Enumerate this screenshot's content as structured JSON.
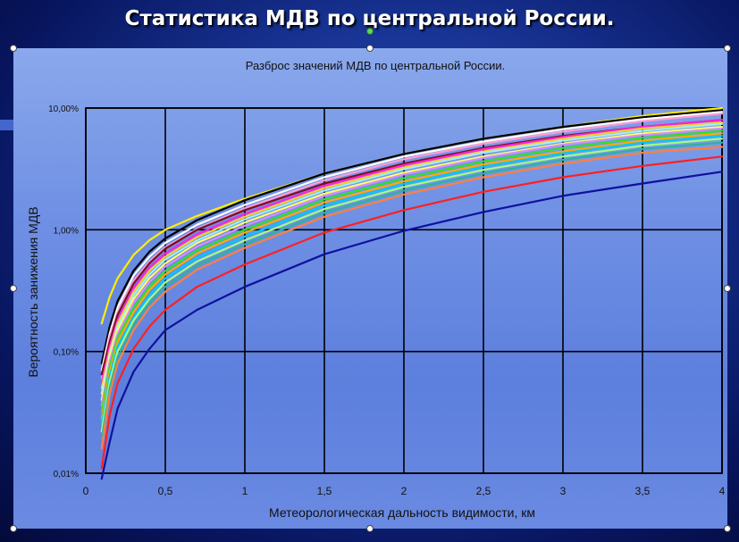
{
  "slide": {
    "title": "Статистика МДВ по центральной России."
  },
  "colors": {
    "background": "#0d2175",
    "plot_area": "#6f90e4",
    "grid": "#000000"
  },
  "chart_data": {
    "type": "line",
    "title": "Разброс значений МДВ по центральной России.",
    "xlabel": "Метеорологическая дальность видимости, км",
    "ylabel": "Вероятность занижения МДВ",
    "xlim": [
      0,
      4
    ],
    "ylim": [
      0.01,
      10
    ],
    "yscale": "log",
    "grid": true,
    "x_ticks": [
      0,
      0.5,
      1,
      1.5,
      2,
      2.5,
      3,
      3.5,
      4
    ],
    "x_tick_labels": [
      "0",
      "0,5",
      "1",
      "1,5",
      "2",
      "2,5",
      "3",
      "3,5",
      "4"
    ],
    "y_ticks": [
      0.01,
      0.1,
      1,
      10
    ],
    "y_tick_labels": [
      "0,01%",
      "0,10%",
      "1,00%",
      "10,00%"
    ],
    "x": [
      0.1,
      0.15,
      0.2,
      0.3,
      0.4,
      0.5,
      0.7,
      1.0,
      1.5,
      2.0,
      2.5,
      3.0,
      3.5,
      4.0
    ],
    "series": [
      {
        "color": "#ffee00",
        "values": [
          0.17,
          0.28,
          0.4,
          0.62,
          0.82,
          1.0,
          1.3,
          1.8,
          2.9,
          4.2,
          5.6,
          7.0,
          8.6,
          10.0
        ]
      },
      {
        "color": "#000000",
        "values": [
          0.08,
          0.16,
          0.26,
          0.46,
          0.66,
          0.85,
          1.2,
          1.75,
          2.9,
          4.2,
          5.6,
          7.0,
          8.4,
          9.6
        ]
      },
      {
        "color": "#ffffff",
        "values": [
          0.07,
          0.14,
          0.23,
          0.42,
          0.6,
          0.78,
          1.1,
          1.6,
          2.7,
          4.0,
          5.3,
          6.7,
          8.1,
          9.3
        ]
      },
      {
        "color": "#ff9dd2",
        "values": [
          0.06,
          0.13,
          0.21,
          0.38,
          0.55,
          0.72,
          1.02,
          1.5,
          2.55,
          3.8,
          5.1,
          6.4,
          7.8,
          9.0
        ]
      },
      {
        "color": "#7a1020",
        "values": [
          0.065,
          0.12,
          0.2,
          0.36,
          0.53,
          0.7,
          1.0,
          1.45,
          2.4,
          3.5,
          4.7,
          5.9,
          7.0,
          8.0
        ]
      },
      {
        "color": "#ff22d8",
        "values": [
          0.055,
          0.11,
          0.18,
          0.33,
          0.49,
          0.64,
          0.92,
          1.35,
          2.3,
          3.4,
          4.6,
          5.8,
          7.0,
          8.0
        ]
      },
      {
        "color": "#ffcc33",
        "values": [
          0.05,
          0.1,
          0.17,
          0.31,
          0.46,
          0.6,
          0.87,
          1.28,
          2.2,
          3.25,
          4.4,
          5.6,
          6.8,
          7.6
        ]
      },
      {
        "color": "#9cf0ff",
        "values": [
          0.045,
          0.095,
          0.16,
          0.29,
          0.43,
          0.57,
          0.82,
          1.22,
          2.1,
          3.15,
          4.3,
          5.4,
          6.5,
          7.4
        ]
      },
      {
        "color": "#ffff66",
        "values": [
          0.04,
          0.09,
          0.15,
          0.27,
          0.4,
          0.53,
          0.78,
          1.15,
          1.98,
          2.95,
          4.0,
          5.1,
          6.2,
          7.0
        ]
      },
      {
        "color": "#d98cff",
        "values": [
          0.036,
          0.083,
          0.14,
          0.25,
          0.37,
          0.5,
          0.73,
          1.08,
          1.9,
          2.85,
          3.9,
          5.0,
          6.0,
          6.8
        ]
      },
      {
        "color": "#30e030",
        "values": [
          0.032,
          0.075,
          0.13,
          0.23,
          0.34,
          0.46,
          0.68,
          1.0,
          1.78,
          2.65,
          3.65,
          4.7,
          5.7,
          6.5
        ]
      },
      {
        "color": "#ffaa00",
        "values": [
          0.028,
          0.068,
          0.12,
          0.21,
          0.32,
          0.43,
          0.64,
          0.95,
          1.68,
          2.5,
          3.45,
          4.4,
          5.4,
          6.2
        ]
      },
      {
        "color": "#00c8ff",
        "values": [
          0.025,
          0.062,
          0.11,
          0.19,
          0.29,
          0.4,
          0.59,
          0.88,
          1.58,
          2.38,
          3.3,
          4.25,
          5.2,
          5.9
        ]
      },
      {
        "color": "#a0ff80",
        "values": [
          0.022,
          0.056,
          0.1,
          0.18,
          0.27,
          0.37,
          0.55,
          0.82,
          1.48,
          2.25,
          3.1,
          4.0,
          4.9,
          5.6
        ]
      },
      {
        "color": "#30b0a0",
        "values": [
          0.019,
          0.05,
          0.09,
          0.165,
          0.25,
          0.34,
          0.51,
          0.76,
          1.38,
          2.1,
          2.9,
          3.75,
          4.6,
          5.2
        ]
      },
      {
        "color": "#ff8040",
        "values": [
          0.016,
          0.045,
          0.08,
          0.15,
          0.23,
          0.31,
          0.47,
          0.71,
          1.28,
          1.95,
          2.7,
          3.5,
          4.3,
          4.8
        ]
      },
      {
        "color": "#ff2020",
        "values": [
          0.011,
          0.03,
          0.055,
          0.105,
          0.16,
          0.22,
          0.34,
          0.52,
          0.95,
          1.45,
          2.05,
          2.7,
          3.35,
          4.0
        ]
      },
      {
        "color": "#1010a0",
        "values": [
          0.009,
          0.018,
          0.034,
          0.068,
          0.105,
          0.15,
          0.22,
          0.34,
          0.63,
          0.98,
          1.4,
          1.9,
          2.4,
          3.0
        ]
      }
    ]
  }
}
